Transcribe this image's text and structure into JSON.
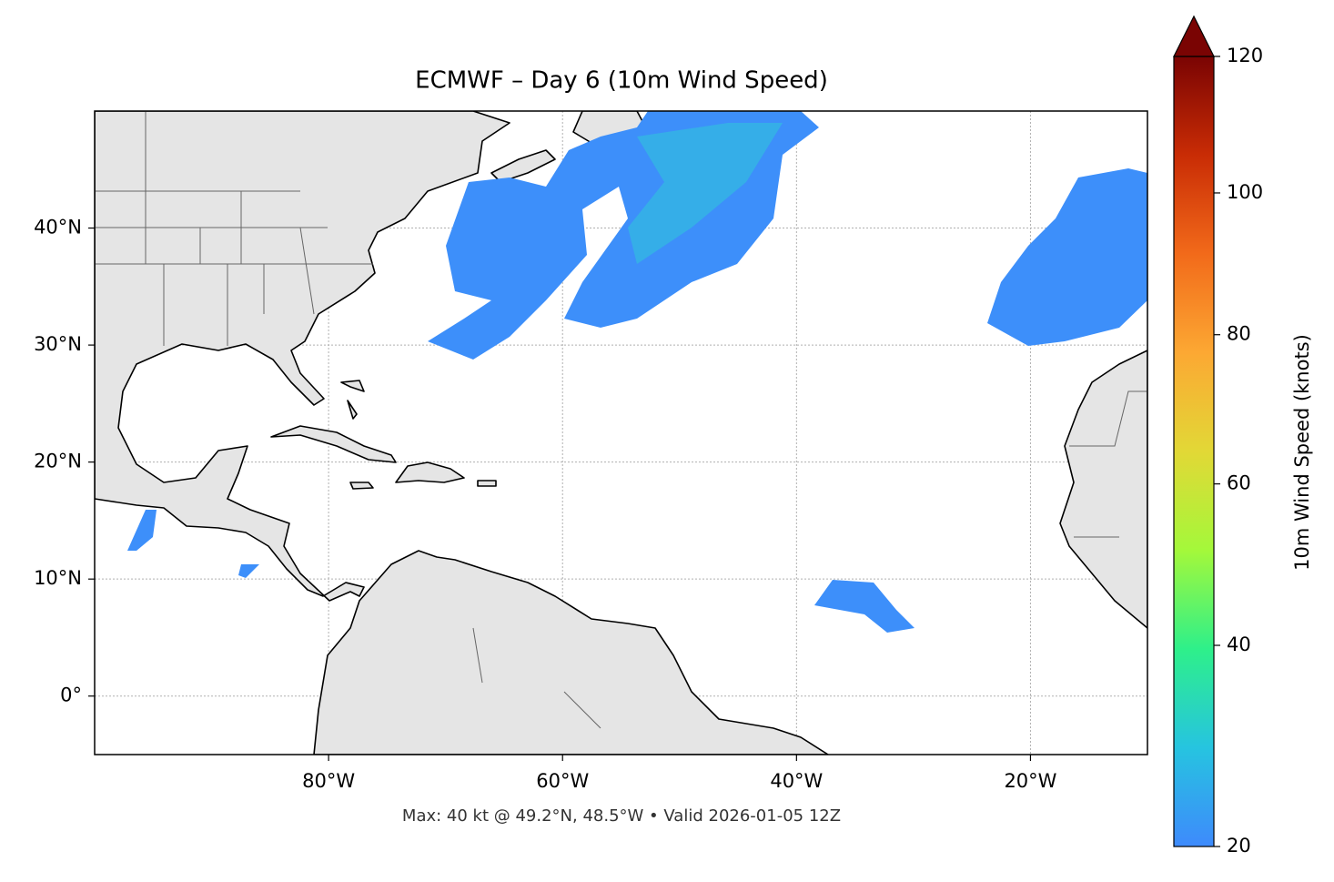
{
  "chart_data": {
    "type": "map",
    "title": "ECMWF – Day 6 (10m Wind Speed)",
    "footer": "Max: 40 kt @ 49.2°N, 48.5°W • Valid 2026-01-05 12Z",
    "xlim": [
      -100,
      -10
    ],
    "ylim": [
      -5,
      50
    ],
    "xticks": [
      {
        "value": -80,
        "label": "80°W"
      },
      {
        "value": -60,
        "label": "60°W"
      },
      {
        "value": -40,
        "label": "40°W"
      },
      {
        "value": -20,
        "label": "20°W"
      }
    ],
    "yticks": [
      {
        "value": 0,
        "label": "0°"
      },
      {
        "value": 10,
        "label": "10°N"
      },
      {
        "value": 20,
        "label": "20°N"
      },
      {
        "value": 30,
        "label": "30°N"
      },
      {
        "value": 40,
        "label": "40°N"
      }
    ],
    "grid": true,
    "colorbar": {
      "label": "10m Wind Speed (knots)",
      "lim": [
        20,
        120
      ],
      "ticks": [
        20,
        40,
        60,
        80,
        100,
        120
      ],
      "gamma": 0.85,
      "extend": "max",
      "colors": [
        "#3e8afc",
        "#26c4e0",
        "#2ef08a",
        "#a4f83a",
        "#e2d836",
        "#fca833",
        "#f26a1a",
        "#c92c05",
        "#7a0403"
      ]
    }
  }
}
